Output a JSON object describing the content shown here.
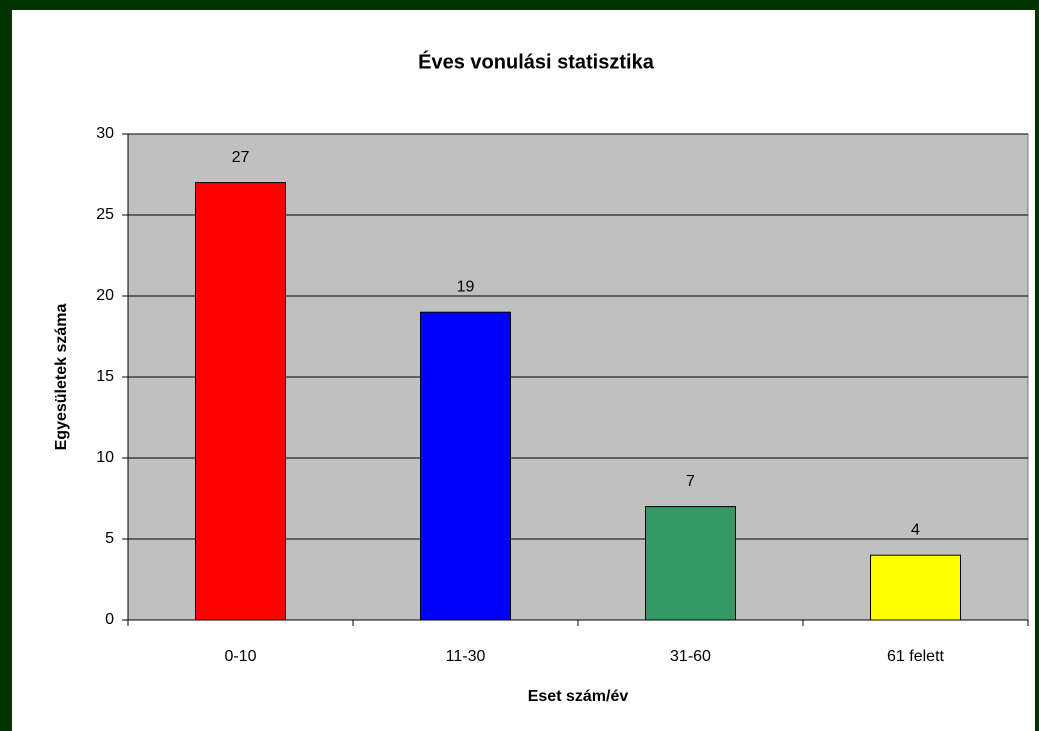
{
  "chart_data": {
    "type": "bar",
    "title": "Éves vonulási statisztika",
    "x_label": "Eset szám/év",
    "y_label": "Egyesületek száma",
    "categories": [
      "0-10",
      "11-30",
      "31-60",
      "61 felett"
    ],
    "values": [
      27,
      19,
      7,
      4
    ],
    "colors": [
      "#ff0000",
      "#0000ff",
      "#339966",
      "#ffff00"
    ],
    "ylim": [
      0,
      30
    ],
    "yticks": [
      0,
      5,
      10,
      15,
      20,
      25,
      30
    ],
    "grid": true
  }
}
